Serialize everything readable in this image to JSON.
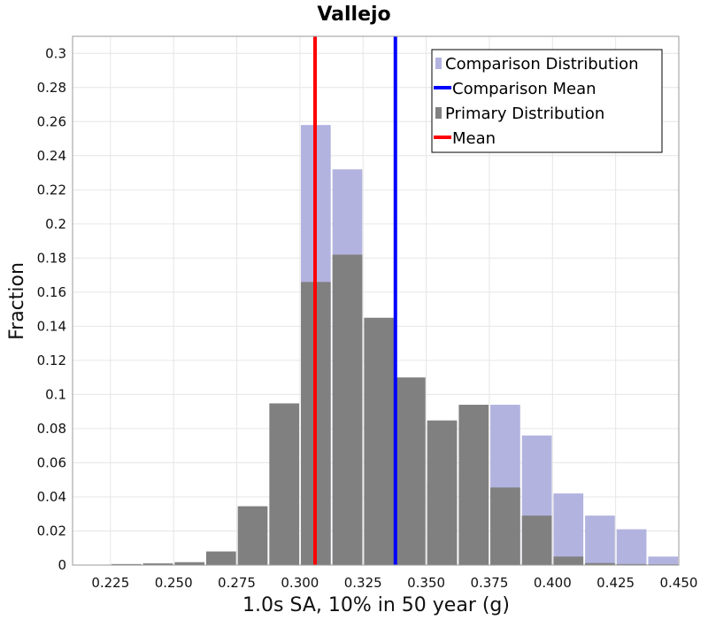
{
  "chart_data": {
    "type": "bar",
    "title": "Vallejo",
    "xlabel": "1.0s SA, 10% in 50 year (g)",
    "ylabel": "Fraction",
    "xlim": [
      0.21,
      0.45
    ],
    "ylim": [
      0,
      0.31
    ],
    "bin_width": 0.0125,
    "x_ticks": [
      "0.225",
      "0.250",
      "0.275",
      "0.300",
      "0.325",
      "0.350",
      "0.375",
      "0.400",
      "0.425",
      "0.450"
    ],
    "y_ticks": [
      "0",
      "0.02",
      "0.04",
      "0.06",
      "0.08",
      "0.1",
      "0.12",
      "0.14",
      "0.16",
      "0.18",
      "0.2",
      "0.22",
      "0.24",
      "0.26",
      "0.28",
      "0.3"
    ],
    "grid": true,
    "legend_position": "top-right",
    "series": [
      {
        "name": "Comparison Distribution",
        "color": "#b3b3e0",
        "x": [
          0.3063,
          0.3188,
          0.3313,
          0.3438,
          0.3563,
          0.3688,
          0.3813,
          0.3938,
          0.4063,
          0.4188,
          0.4313,
          0.4438
        ],
        "values": [
          0.258,
          0.232,
          0.0,
          0.0,
          0.049,
          0.053,
          0.094,
          0.076,
          0.042,
          0.029,
          0.021,
          0.005
        ]
      },
      {
        "name": "Primary Distribution",
        "color": "#808080",
        "x": [
          0.2313,
          0.2438,
          0.2563,
          0.2688,
          0.2813,
          0.2938,
          0.3063,
          0.3188,
          0.3313,
          0.3438,
          0.3563,
          0.3688,
          0.3813,
          0.3938,
          0.4063,
          0.4188,
          0.4313,
          0.4438
        ],
        "values": [
          0.0006,
          0.001,
          0.0017,
          0.008,
          0.0345,
          0.0948,
          0.166,
          0.182,
          0.145,
          0.11,
          0.0848,
          0.094,
          0.0455,
          0.029,
          0.005,
          0.0012,
          0.0006,
          0.0004
        ]
      }
    ],
    "lines": [
      {
        "name": "Comparison Mean",
        "color": "#0000ff",
        "x": 0.3378
      },
      {
        "name": "Mean",
        "color": "#ff0000",
        "x": 0.306
      }
    ]
  }
}
